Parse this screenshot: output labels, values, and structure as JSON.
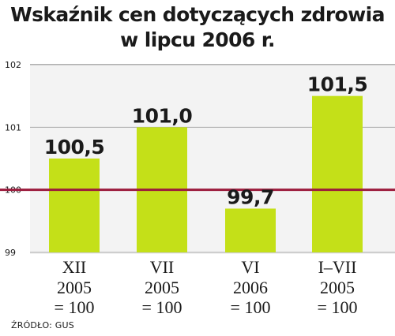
{
  "title_line1": "Wskaźnik cen dotyczących zdrowia",
  "title_line2": "w lipcu 2006 r.",
  "source": "ŹRÓDŁO: GUS",
  "colors": {
    "bar": "#c4e018",
    "reference_line": "#9c1b3c",
    "plot_background": "#f3f3f3",
    "text": "#1a1a1a"
  },
  "chart_data": {
    "type": "bar",
    "categories": [
      [
        "XII",
        "2005",
        "= 100"
      ],
      [
        "VII",
        "2005",
        "= 100"
      ],
      [
        "VI",
        "2006",
        "= 100"
      ],
      [
        "I–VII",
        "2005",
        "= 100"
      ]
    ],
    "values": [
      100.5,
      101.0,
      99.7,
      101.5
    ],
    "data_labels": [
      "100,5",
      "101,0",
      "99,7",
      "101,5"
    ],
    "ylim": [
      99,
      102
    ],
    "yticks": [
      99,
      100,
      101,
      102
    ],
    "ytick_labels": [
      "99",
      "100",
      "101",
      "102"
    ],
    "reference_value": 100,
    "grid": true
  }
}
